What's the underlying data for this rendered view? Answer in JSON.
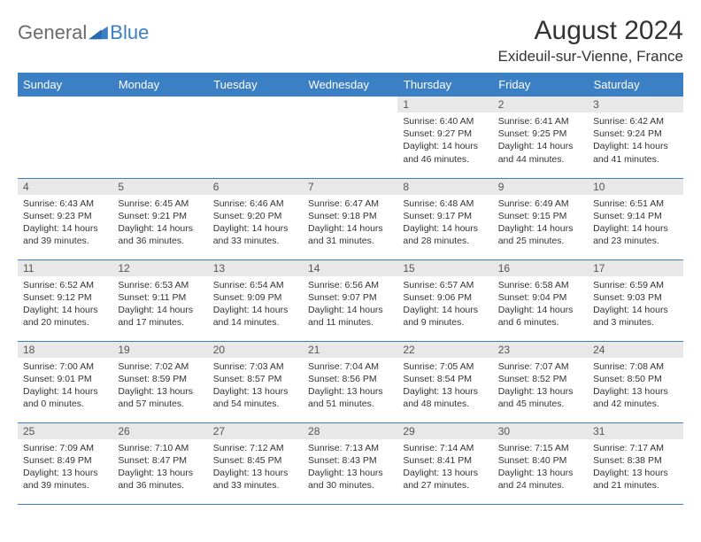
{
  "logo": {
    "general": "General",
    "blue": "Blue"
  },
  "title": "August 2024",
  "location": "Exideuil-sur-Vienne, France",
  "colors": {
    "header_bg": "#3b7fc4",
    "header_text": "#ffffff",
    "daynum_bg": "#e8e8e8",
    "text": "#333333",
    "logo_gray": "#6b6b6b",
    "logo_blue": "#3b7fc4"
  },
  "weekdays": [
    "Sunday",
    "Monday",
    "Tuesday",
    "Wednesday",
    "Thursday",
    "Friday",
    "Saturday"
  ],
  "weeks": [
    [
      {
        "n": "",
        "sunrise": "",
        "sunset": "",
        "daylight": ""
      },
      {
        "n": "",
        "sunrise": "",
        "sunset": "",
        "daylight": ""
      },
      {
        "n": "",
        "sunrise": "",
        "sunset": "",
        "daylight": ""
      },
      {
        "n": "",
        "sunrise": "",
        "sunset": "",
        "daylight": ""
      },
      {
        "n": "1",
        "sunrise": "Sunrise: 6:40 AM",
        "sunset": "Sunset: 9:27 PM",
        "daylight": "Daylight: 14 hours and 46 minutes."
      },
      {
        "n": "2",
        "sunrise": "Sunrise: 6:41 AM",
        "sunset": "Sunset: 9:25 PM",
        "daylight": "Daylight: 14 hours and 44 minutes."
      },
      {
        "n": "3",
        "sunrise": "Sunrise: 6:42 AM",
        "sunset": "Sunset: 9:24 PM",
        "daylight": "Daylight: 14 hours and 41 minutes."
      }
    ],
    [
      {
        "n": "4",
        "sunrise": "Sunrise: 6:43 AM",
        "sunset": "Sunset: 9:23 PM",
        "daylight": "Daylight: 14 hours and 39 minutes."
      },
      {
        "n": "5",
        "sunrise": "Sunrise: 6:45 AM",
        "sunset": "Sunset: 9:21 PM",
        "daylight": "Daylight: 14 hours and 36 minutes."
      },
      {
        "n": "6",
        "sunrise": "Sunrise: 6:46 AM",
        "sunset": "Sunset: 9:20 PM",
        "daylight": "Daylight: 14 hours and 33 minutes."
      },
      {
        "n": "7",
        "sunrise": "Sunrise: 6:47 AM",
        "sunset": "Sunset: 9:18 PM",
        "daylight": "Daylight: 14 hours and 31 minutes."
      },
      {
        "n": "8",
        "sunrise": "Sunrise: 6:48 AM",
        "sunset": "Sunset: 9:17 PM",
        "daylight": "Daylight: 14 hours and 28 minutes."
      },
      {
        "n": "9",
        "sunrise": "Sunrise: 6:49 AM",
        "sunset": "Sunset: 9:15 PM",
        "daylight": "Daylight: 14 hours and 25 minutes."
      },
      {
        "n": "10",
        "sunrise": "Sunrise: 6:51 AM",
        "sunset": "Sunset: 9:14 PM",
        "daylight": "Daylight: 14 hours and 23 minutes."
      }
    ],
    [
      {
        "n": "11",
        "sunrise": "Sunrise: 6:52 AM",
        "sunset": "Sunset: 9:12 PM",
        "daylight": "Daylight: 14 hours and 20 minutes."
      },
      {
        "n": "12",
        "sunrise": "Sunrise: 6:53 AM",
        "sunset": "Sunset: 9:11 PM",
        "daylight": "Daylight: 14 hours and 17 minutes."
      },
      {
        "n": "13",
        "sunrise": "Sunrise: 6:54 AM",
        "sunset": "Sunset: 9:09 PM",
        "daylight": "Daylight: 14 hours and 14 minutes."
      },
      {
        "n": "14",
        "sunrise": "Sunrise: 6:56 AM",
        "sunset": "Sunset: 9:07 PM",
        "daylight": "Daylight: 14 hours and 11 minutes."
      },
      {
        "n": "15",
        "sunrise": "Sunrise: 6:57 AM",
        "sunset": "Sunset: 9:06 PM",
        "daylight": "Daylight: 14 hours and 9 minutes."
      },
      {
        "n": "16",
        "sunrise": "Sunrise: 6:58 AM",
        "sunset": "Sunset: 9:04 PM",
        "daylight": "Daylight: 14 hours and 6 minutes."
      },
      {
        "n": "17",
        "sunrise": "Sunrise: 6:59 AM",
        "sunset": "Sunset: 9:03 PM",
        "daylight": "Daylight: 14 hours and 3 minutes."
      }
    ],
    [
      {
        "n": "18",
        "sunrise": "Sunrise: 7:00 AM",
        "sunset": "Sunset: 9:01 PM",
        "daylight": "Daylight: 14 hours and 0 minutes."
      },
      {
        "n": "19",
        "sunrise": "Sunrise: 7:02 AM",
        "sunset": "Sunset: 8:59 PM",
        "daylight": "Daylight: 13 hours and 57 minutes."
      },
      {
        "n": "20",
        "sunrise": "Sunrise: 7:03 AM",
        "sunset": "Sunset: 8:57 PM",
        "daylight": "Daylight: 13 hours and 54 minutes."
      },
      {
        "n": "21",
        "sunrise": "Sunrise: 7:04 AM",
        "sunset": "Sunset: 8:56 PM",
        "daylight": "Daylight: 13 hours and 51 minutes."
      },
      {
        "n": "22",
        "sunrise": "Sunrise: 7:05 AM",
        "sunset": "Sunset: 8:54 PM",
        "daylight": "Daylight: 13 hours and 48 minutes."
      },
      {
        "n": "23",
        "sunrise": "Sunrise: 7:07 AM",
        "sunset": "Sunset: 8:52 PM",
        "daylight": "Daylight: 13 hours and 45 minutes."
      },
      {
        "n": "24",
        "sunrise": "Sunrise: 7:08 AM",
        "sunset": "Sunset: 8:50 PM",
        "daylight": "Daylight: 13 hours and 42 minutes."
      }
    ],
    [
      {
        "n": "25",
        "sunrise": "Sunrise: 7:09 AM",
        "sunset": "Sunset: 8:49 PM",
        "daylight": "Daylight: 13 hours and 39 minutes."
      },
      {
        "n": "26",
        "sunrise": "Sunrise: 7:10 AM",
        "sunset": "Sunset: 8:47 PM",
        "daylight": "Daylight: 13 hours and 36 minutes."
      },
      {
        "n": "27",
        "sunrise": "Sunrise: 7:12 AM",
        "sunset": "Sunset: 8:45 PM",
        "daylight": "Daylight: 13 hours and 33 minutes."
      },
      {
        "n": "28",
        "sunrise": "Sunrise: 7:13 AM",
        "sunset": "Sunset: 8:43 PM",
        "daylight": "Daylight: 13 hours and 30 minutes."
      },
      {
        "n": "29",
        "sunrise": "Sunrise: 7:14 AM",
        "sunset": "Sunset: 8:41 PM",
        "daylight": "Daylight: 13 hours and 27 minutes."
      },
      {
        "n": "30",
        "sunrise": "Sunrise: 7:15 AM",
        "sunset": "Sunset: 8:40 PM",
        "daylight": "Daylight: 13 hours and 24 minutes."
      },
      {
        "n": "31",
        "sunrise": "Sunrise: 7:17 AM",
        "sunset": "Sunset: 8:38 PM",
        "daylight": "Daylight: 13 hours and 21 minutes."
      }
    ]
  ]
}
